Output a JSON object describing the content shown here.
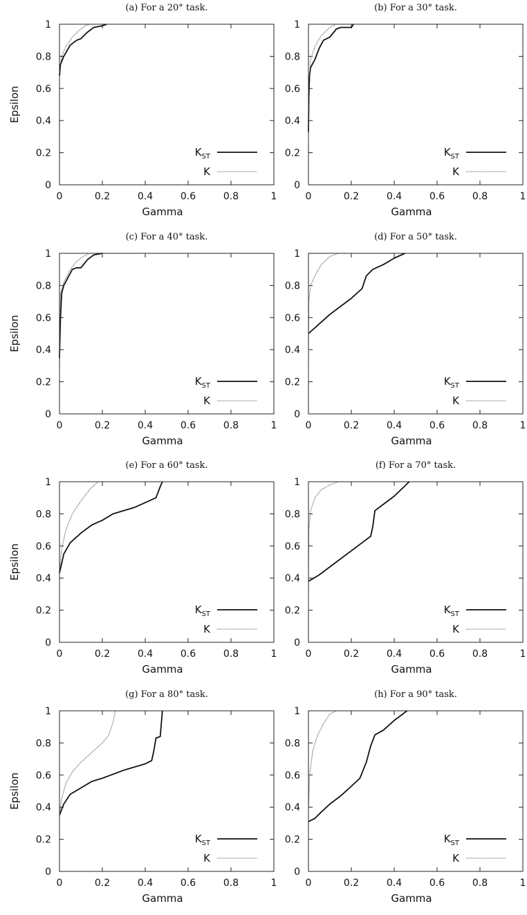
{
  "chart_data": [
    {
      "type": "line",
      "title": "(a) For a 20° task.",
      "xlabel": "Gamma",
      "ylabel": "Epsilon",
      "xlim": [
        0,
        1
      ],
      "ylim": [
        0,
        1
      ],
      "xticks": [
        "0",
        "0.2",
        "0.4",
        "0.6",
        "0.8",
        "1"
      ],
      "yticks": [
        "0",
        "0.2",
        "0.4",
        "0.6",
        "0.8",
        "1"
      ],
      "legend": "bottom-right",
      "grid": false,
      "series": [
        {
          "name": "K_ST",
          "style": "solid",
          "x": [
            0,
            0.005,
            0.02,
            0.05,
            0.08,
            0.1,
            0.13,
            0.16,
            0.2,
            0.22
          ],
          "y": [
            0.68,
            0.75,
            0.8,
            0.87,
            0.9,
            0.91,
            0.95,
            0.98,
            0.99,
            1.0
          ]
        },
        {
          "name": "K",
          "style": "dotted",
          "x": [
            0,
            0.01,
            0.03,
            0.06,
            0.09,
            0.12,
            0.14
          ],
          "y": [
            0.7,
            0.8,
            0.86,
            0.92,
            0.96,
            0.99,
            1.0
          ]
        }
      ]
    },
    {
      "type": "line",
      "title": "(b) For a 30° task.",
      "xlabel": "Gamma",
      "ylabel": "",
      "xlim": [
        0,
        1
      ],
      "ylim": [
        0,
        1
      ],
      "xticks": [
        "0",
        "0.2",
        "0.4",
        "0.6",
        "0.8",
        "1"
      ],
      "yticks": [
        "0",
        "0.2",
        "0.4",
        "0.6",
        "0.8",
        "1"
      ],
      "legend": "bottom-right",
      "grid": false,
      "series": [
        {
          "name": "K_ST",
          "style": "solid",
          "x": [
            0,
            0.002,
            0.005,
            0.01,
            0.03,
            0.05,
            0.07,
            0.1,
            0.13,
            0.15,
            0.2,
            0.21
          ],
          "y": [
            0.33,
            0.55,
            0.68,
            0.73,
            0.78,
            0.85,
            0.9,
            0.92,
            0.97,
            0.98,
            0.98,
            1.0
          ]
        },
        {
          "name": "K",
          "style": "dotted",
          "x": [
            0,
            0.003,
            0.01,
            0.03,
            0.06,
            0.1,
            0.13
          ],
          "y": [
            0.25,
            0.6,
            0.78,
            0.86,
            0.93,
            0.98,
            1.0
          ]
        }
      ]
    },
    {
      "type": "line",
      "title": "(c) For a 40° task.",
      "xlabel": "Gamma",
      "ylabel": "Epsilon",
      "xlim": [
        0,
        1
      ],
      "ylim": [
        0,
        1
      ],
      "xticks": [
        "0",
        "0.2",
        "0.4",
        "0.6",
        "0.8",
        "1"
      ],
      "yticks": [
        "0",
        "0.2",
        "0.4",
        "0.6",
        "0.8",
        "1"
      ],
      "legend": "bottom-right",
      "grid": false,
      "series": [
        {
          "name": "K_ST",
          "style": "solid",
          "x": [
            0,
            0.005,
            0.01,
            0.012,
            0.02,
            0.04,
            0.06,
            0.08,
            0.1,
            0.13,
            0.16,
            0.2
          ],
          "y": [
            0.35,
            0.6,
            0.75,
            0.76,
            0.8,
            0.85,
            0.9,
            0.91,
            0.91,
            0.96,
            0.99,
            1.0
          ]
        },
        {
          "name": "K",
          "style": "dotted",
          "x": [
            0,
            0.005,
            0.02,
            0.05,
            0.08,
            0.11,
            0.14
          ],
          "y": [
            0.22,
            0.75,
            0.82,
            0.9,
            0.95,
            0.98,
            1.0
          ]
        }
      ]
    },
    {
      "type": "line",
      "title": "(d) For a 50° task.",
      "xlabel": "Gamma",
      "ylabel": "",
      "xlim": [
        0,
        1
      ],
      "ylim": [
        0,
        1
      ],
      "xticks": [
        "0",
        "0.2",
        "0.4",
        "0.6",
        "0.8",
        "1"
      ],
      "yticks": [
        "0",
        "0.2",
        "0.4",
        "0.6",
        "0.8",
        "1"
      ],
      "legend": "bottom-right",
      "grid": false,
      "series": [
        {
          "name": "K_ST",
          "style": "solid",
          "x": [
            0,
            0.05,
            0.1,
            0.15,
            0.2,
            0.25,
            0.27,
            0.3,
            0.35,
            0.4,
            0.45
          ],
          "y": [
            0.5,
            0.56,
            0.62,
            0.67,
            0.72,
            0.78,
            0.86,
            0.9,
            0.93,
            0.97,
            1.0
          ]
        },
        {
          "name": "K",
          "style": "dotted",
          "x": [
            0,
            0.002,
            0.01,
            0.03,
            0.06,
            0.1,
            0.14
          ],
          "y": [
            0.2,
            0.7,
            0.8,
            0.86,
            0.93,
            0.98,
            1.0
          ]
        }
      ]
    },
    {
      "type": "line",
      "title": "(e) For a 60° task.",
      "xlabel": "Gamma",
      "ylabel": "Epsilon",
      "xlim": [
        0,
        1
      ],
      "ylim": [
        0,
        1
      ],
      "xticks": [
        "0",
        "0.2",
        "0.4",
        "0.6",
        "0.8",
        "1"
      ],
      "yticks": [
        "0",
        "0.2",
        "0.4",
        "0.6",
        "0.8",
        "1"
      ],
      "legend": "bottom-right",
      "grid": false,
      "series": [
        {
          "name": "K_ST",
          "style": "solid",
          "x": [
            0,
            0.02,
            0.05,
            0.1,
            0.15,
            0.2,
            0.25,
            0.3,
            0.35,
            0.4,
            0.45,
            0.47,
            0.48
          ],
          "y": [
            0.43,
            0.55,
            0.62,
            0.68,
            0.73,
            0.76,
            0.8,
            0.82,
            0.84,
            0.87,
            0.9,
            0.97,
            1.0
          ]
        },
        {
          "name": "K",
          "style": "dotted",
          "x": [
            0,
            0.01,
            0.03,
            0.06,
            0.1,
            0.14,
            0.18
          ],
          "y": [
            0.43,
            0.58,
            0.7,
            0.8,
            0.88,
            0.95,
            1.0
          ]
        }
      ]
    },
    {
      "type": "line",
      "title": "(f) For a 70° task.",
      "xlabel": "Gamma",
      "ylabel": "",
      "xlim": [
        0,
        1
      ],
      "ylim": [
        0,
        1
      ],
      "xticks": [
        "0",
        "0.2",
        "0.4",
        "0.6",
        "0.8",
        "1"
      ],
      "yticks": [
        "0",
        "0.2",
        "0.4",
        "0.6",
        "0.8",
        "1"
      ],
      "legend": "bottom-right",
      "grid": false,
      "series": [
        {
          "name": "K_ST",
          "style": "solid",
          "x": [
            0,
            0.05,
            0.1,
            0.15,
            0.2,
            0.25,
            0.29,
            0.3,
            0.31,
            0.35,
            0.4,
            0.47
          ],
          "y": [
            0.38,
            0.42,
            0.47,
            0.52,
            0.57,
            0.62,
            0.66,
            0.72,
            0.82,
            0.86,
            0.91,
            1.0
          ]
        },
        {
          "name": "K",
          "style": "dotted",
          "x": [
            0,
            0.002,
            0.01,
            0.03,
            0.06,
            0.1,
            0.14
          ],
          "y": [
            0.2,
            0.7,
            0.82,
            0.9,
            0.95,
            0.98,
            1.0
          ]
        }
      ]
    },
    {
      "type": "line",
      "title": "(g) For a 80° task.",
      "xlabel": "Gamma",
      "ylabel": "Epsilon",
      "xlim": [
        0,
        1
      ],
      "ylim": [
        0,
        1
      ],
      "xticks": [
        "0",
        "0.2",
        "0.4",
        "0.6",
        "0.8",
        "1"
      ],
      "yticks": [
        "0",
        "0.2",
        "0.4",
        "0.6",
        "0.8",
        "1"
      ],
      "legend": "bottom-right",
      "grid": false,
      "series": [
        {
          "name": "K_ST",
          "style": "solid",
          "x": [
            0,
            0.02,
            0.05,
            0.1,
            0.15,
            0.2,
            0.3,
            0.4,
            0.43,
            0.44,
            0.45,
            0.47,
            0.48
          ],
          "y": [
            0.35,
            0.42,
            0.48,
            0.52,
            0.56,
            0.58,
            0.63,
            0.67,
            0.69,
            0.75,
            0.83,
            0.84,
            1.0
          ]
        },
        {
          "name": "K",
          "style": "dotted",
          "x": [
            0,
            0.01,
            0.03,
            0.06,
            0.1,
            0.15,
            0.2,
            0.23,
            0.25,
            0.26
          ],
          "y": [
            0.35,
            0.45,
            0.55,
            0.62,
            0.68,
            0.74,
            0.8,
            0.85,
            0.93,
            1.0
          ]
        }
      ]
    },
    {
      "type": "line",
      "title": "(h) For a 90° task.",
      "xlabel": "Gamma",
      "ylabel": "",
      "xlim": [
        0,
        1
      ],
      "ylim": [
        0,
        1
      ],
      "xticks": [
        "0",
        "0.2",
        "0.4",
        "0.6",
        "0.8",
        "1"
      ],
      "yticks": [
        "0",
        "0.2",
        "0.4",
        "0.6",
        "0.8",
        "1"
      ],
      "legend": "bottom-right",
      "grid": false,
      "series": [
        {
          "name": "K_ST",
          "style": "solid",
          "x": [
            0,
            0.03,
            0.06,
            0.1,
            0.15,
            0.2,
            0.24,
            0.27,
            0.29,
            0.31,
            0.35,
            0.4,
            0.46
          ],
          "y": [
            0.31,
            0.33,
            0.37,
            0.42,
            0.47,
            0.53,
            0.58,
            0.68,
            0.78,
            0.85,
            0.88,
            0.94,
            1.0
          ]
        },
        {
          "name": "K",
          "style": "dotted",
          "x": [
            0,
            0.005,
            0.02,
            0.04,
            0.07,
            0.1,
            0.13
          ],
          "y": [
            0.35,
            0.6,
            0.75,
            0.84,
            0.92,
            0.98,
            1.0
          ]
        }
      ]
    }
  ]
}
